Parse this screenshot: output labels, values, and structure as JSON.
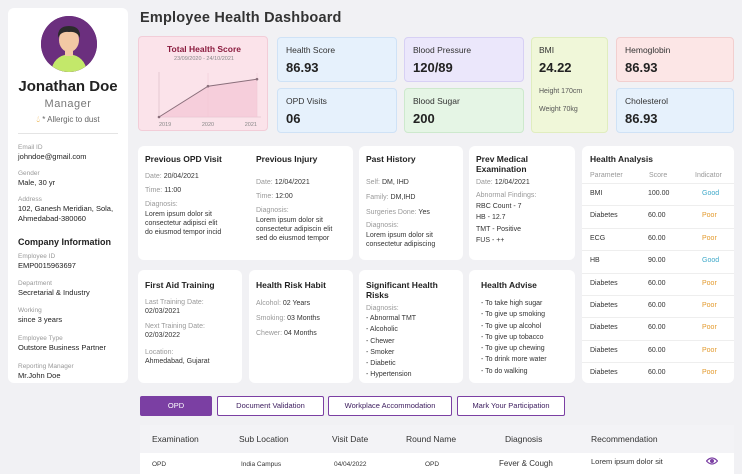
{
  "title": "Employee Health Dashboard",
  "profile": {
    "name": "Jonathan Doe",
    "role": "Manager",
    "allergy": "* Allergic to dust",
    "fields": [
      {
        "label": "Email ID",
        "value": "johndoe@gmail.com"
      },
      {
        "label": "Gender",
        "value": "Male,  30 yr"
      },
      {
        "label": "Address",
        "value": "102, Ganesh Meridian, Sola, Ahmedabad-380060"
      }
    ],
    "company_title": "Company Information",
    "company_fields": [
      {
        "label": "Employee ID",
        "value": "EMP0015963697"
      },
      {
        "label": "Department",
        "value": "Secretarial & Industry"
      },
      {
        "label": "Working",
        "value": "since 3 years"
      },
      {
        "label": "Employee Type",
        "value": "Outstore Business Partner"
      },
      {
        "label": "Reporting Manager",
        "value": "Mr.John Doe"
      }
    ]
  },
  "total_score": {
    "title": "Total Health Score",
    "date_range": "23/09/2020 - 24/10/2021",
    "chart_data": {
      "type": "area",
      "x": [
        "2019",
        "2020",
        "2021"
      ],
      "values": [
        0,
        70,
        86
      ],
      "ylim": [
        0,
        100
      ]
    }
  },
  "stats": {
    "health_score": {
      "label": "Health Score",
      "value": "86.93"
    },
    "blood_pressure": {
      "label": "Blood Pressure",
      "value": "120/89"
    },
    "bmi": {
      "label": "BMI",
      "value": "24.22",
      "height": "Height 170cm",
      "weight": "Weight 70kg"
    },
    "hemoglobin": {
      "label": "Hemoglobin",
      "value": "86.93"
    },
    "opd_visits": {
      "label": "OPD Visits",
      "value": "06"
    },
    "blood_sugar": {
      "label": "Blood Sugar",
      "value": "200"
    },
    "cholesterol": {
      "label": "Cholesterol",
      "value": "86.93"
    }
  },
  "prev_opd": {
    "title": "Previous OPD Visit",
    "date_label": "Date:",
    "date": "20/04/2021",
    "time_label": "Time:",
    "time": "11:00",
    "diag_label": "Diagnosis:",
    "diag": [
      "Lorem ipsum dolor sit",
      "consectetur adipisci elit",
      "do eiusmod tempor incid"
    ]
  },
  "prev_injury": {
    "title": "Previous Injury",
    "date_label": "Date:",
    "date": "12/04/2021",
    "time_label": "Time:",
    "time": "12:00",
    "diag_label": "Diagnosis:",
    "diag": [
      "Lorem ipsum dolor sit",
      "consectetur adipiscin elit",
      "sed do eiusmod tempor"
    ]
  },
  "past_history": {
    "title": "Past History",
    "self_label": "Self:",
    "self": "DM, IHD",
    "family_label": "Family:",
    "family": "DM,IHD",
    "surgeries_label": "Surgeries Done:",
    "surgeries": "Yes",
    "diag_label": "Diagnosis:",
    "diag": [
      "Lorem ipsum dolor sit",
      "consectetur adipiscing"
    ]
  },
  "prev_medical": {
    "title_1": "Prev Medical",
    "title_2": "Examination",
    "date_label": "Date:",
    "date": "12/04/2021",
    "abn_label": "Abnormal Findings:",
    "items": [
      "RBC Count - 7",
      "HB - 12.7",
      "TMT - Positive",
      "FUS - ++"
    ]
  },
  "first_aid": {
    "title": "First Aid Training",
    "last_label": "Last Training Date:",
    "last": "02/03/2021",
    "next_label": "Next Training Date:",
    "next": "02/03/2022",
    "loc_label": "Location:",
    "loc": "Ahmedabad, Gujarat"
  },
  "risk_habit": {
    "title": "Health Risk Habit",
    "alcohol_label": "Alcohol:",
    "alcohol": "02 Years",
    "smoking_label": "Smoking:",
    "smoking": "03 Months",
    "chewer_label": "Chewer:",
    "chewer": "04 Months"
  },
  "risks": {
    "title_1": "Significant Health",
    "title_2": "Risks",
    "diag_label": "Diagnosis:",
    "items": [
      "- Abnormal TMT",
      "- Alcoholic",
      "- Chewer",
      "- Smoker",
      "- Diabetic",
      "- Hypertension"
    ]
  },
  "advise": {
    "title": "Health Advise",
    "items": [
      "- To take high sugar",
      "- To give up smoking",
      "- To give up alcohol",
      "- To give up tobacco",
      "- To give up chewing",
      "- To drink more water",
      "- To do walking"
    ]
  },
  "analysis": {
    "title": "Health Analysis",
    "headers": [
      "Parameter",
      "Score",
      "Indicator"
    ],
    "rows": [
      {
        "param": "BMI",
        "score": "100.00",
        "indicator": "Good"
      },
      {
        "param": "Diabetes",
        "score": "60.00",
        "indicator": "Poor"
      },
      {
        "param": "ECG",
        "score": "60.00",
        "indicator": "Poor"
      },
      {
        "param": "HB",
        "score": "90.00",
        "indicator": "Good"
      },
      {
        "param": "Diabetes",
        "score": "60.00",
        "indicator": "Poor"
      },
      {
        "param": "Diabetes",
        "score": "60.00",
        "indicator": "Poor"
      },
      {
        "param": "Diabetes",
        "score": "60.00",
        "indicator": "Poor"
      },
      {
        "param": "Diabetes",
        "score": "60.00",
        "indicator": "Poor"
      },
      {
        "param": "Diabetes",
        "score": "60.00",
        "indicator": "Poor"
      }
    ],
    "colors": {
      "Good": "#3fa9c9",
      "Poor": "#e39a2d"
    }
  },
  "tabs": [
    "OPD",
    "Document Validation",
    "Workplace Accommodation",
    "Mark Your Participation"
  ],
  "table": {
    "headers": [
      "Examination",
      "Sub Location",
      "Visit Date",
      "Round Name",
      "Diagnosis",
      "Recommendation"
    ],
    "rows": [
      [
        "OPD",
        "India Campus",
        "04/04/2022",
        "OPD",
        "Fever & Cough",
        "Lorem ipsum dolor sit"
      ]
    ]
  },
  "accent": "#7b3fa3"
}
